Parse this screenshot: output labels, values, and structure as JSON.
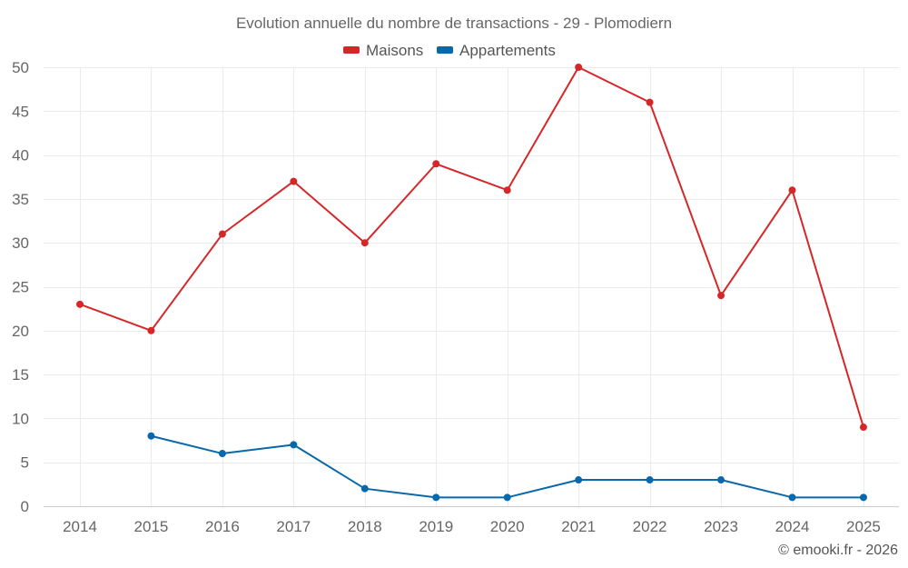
{
  "chart_data": {
    "type": "line",
    "title": "Evolution annuelle du nombre de transactions - 29 - Plomodiern",
    "xlabel": "",
    "ylabel": "",
    "categories": [
      "2014",
      "2015",
      "2016",
      "2017",
      "2018",
      "2019",
      "2020",
      "2021",
      "2022",
      "2023",
      "2024",
      "2025"
    ],
    "ylim": [
      0,
      50
    ],
    "yticks": [
      0,
      5,
      10,
      15,
      20,
      25,
      30,
      35,
      40,
      45,
      50
    ],
    "grid": true,
    "legend_position": "top-center",
    "series": [
      {
        "name": "Maisons",
        "color": "#d62728",
        "values": [
          23,
          20,
          31,
          37,
          30,
          39,
          36,
          50,
          46,
          24,
          36,
          9
        ]
      },
      {
        "name": "Appartements",
        "color": "#0868ac",
        "values": [
          null,
          8,
          6,
          7,
          2,
          1,
          1,
          3,
          3,
          3,
          1,
          1
        ]
      }
    ]
  },
  "credit": "© emooki.fr - 2026"
}
